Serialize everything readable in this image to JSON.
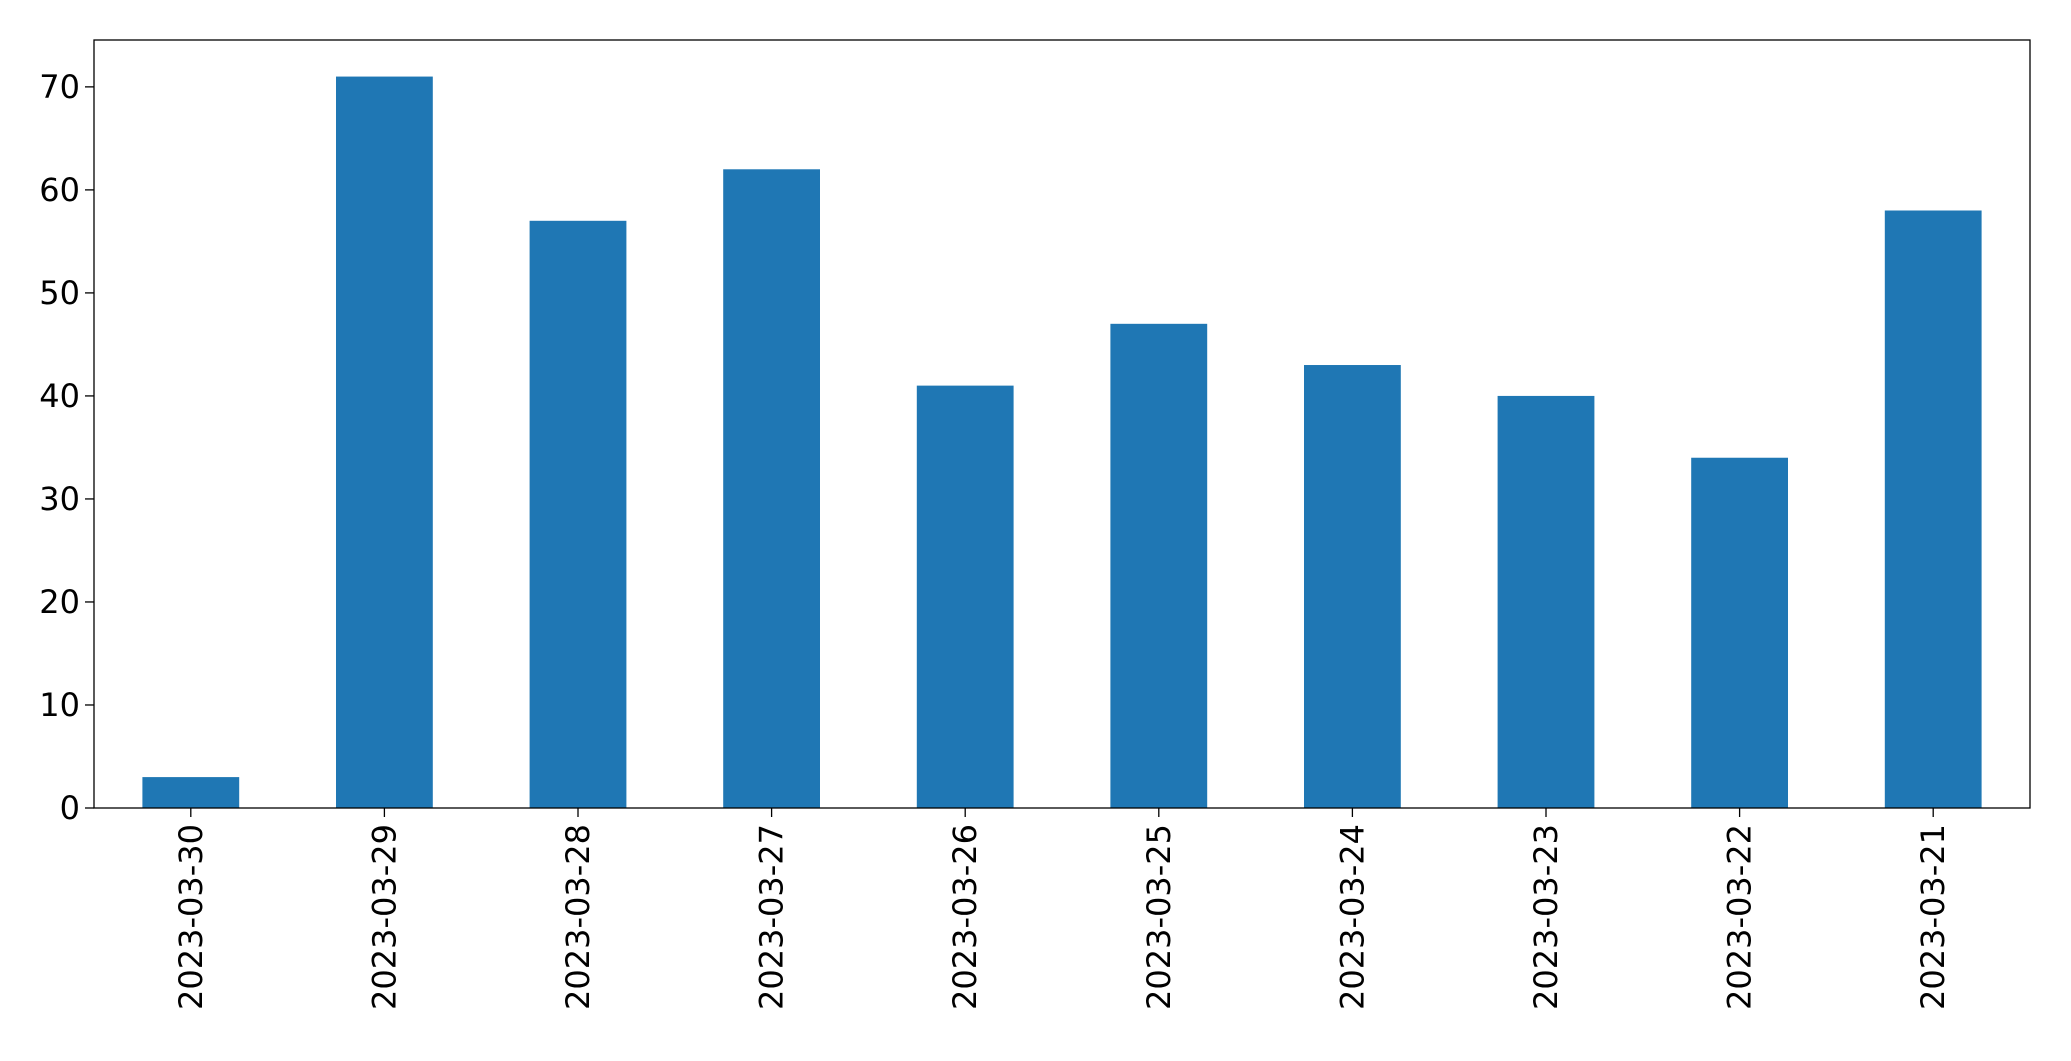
{
  "chart_data": {
    "type": "bar",
    "categories": [
      "2023-03-30",
      "2023-03-29",
      "2023-03-28",
      "2023-03-27",
      "2023-03-26",
      "2023-03-25",
      "2023-03-24",
      "2023-03-23",
      "2023-03-22",
      "2023-03-21"
    ],
    "values": [
      3,
      71,
      57,
      62,
      41,
      47,
      43,
      40,
      34,
      58
    ],
    "color": "#1f77b4",
    "ylim": [
      0,
      74.55
    ],
    "yticks": [
      0,
      10,
      20,
      30,
      40,
      50,
      60,
      70
    ],
    "grid": false
  }
}
